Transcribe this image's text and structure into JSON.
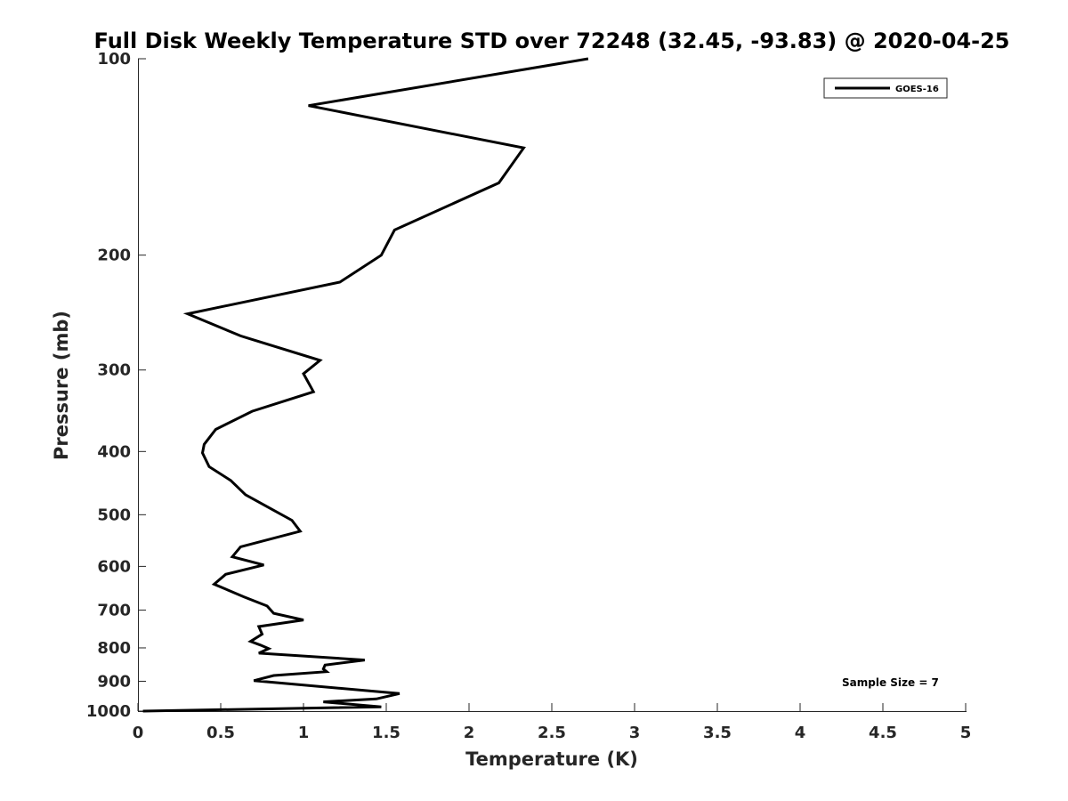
{
  "chart_data": {
    "type": "line",
    "title": "Full Disk Weekly Temperature STD over 72248 (32.45, -93.83) @ 2020-04-25",
    "xlabel": "Temperature (K)",
    "ylabel": "Pressure (mb)",
    "xlim": [
      0,
      5
    ],
    "ylim": [
      100,
      1000
    ],
    "y_scale": "log",
    "y_reversed": true,
    "x_ticks": [
      0,
      0.5,
      1,
      1.5,
      2,
      2.5,
      3,
      3.5,
      4,
      4.5,
      5
    ],
    "x_tick_labels": [
      "0",
      "0.5",
      "1",
      "1.5",
      "2",
      "2.5",
      "3",
      "3.5",
      "4",
      "4.5",
      "5"
    ],
    "y_ticks": [
      100,
      200,
      300,
      400,
      500,
      600,
      700,
      800,
      900,
      1000
    ],
    "y_tick_labels": [
      "100",
      "200",
      "300",
      "400",
      "500",
      "600",
      "700",
      "800",
      "900",
      "1000"
    ],
    "grid": false,
    "legend_position": "top-right",
    "annotation": "Sample Size = 7",
    "series": [
      {
        "name": "GOES-16",
        "color": "#000000",
        "points": [
          [
            2.72,
            100
          ],
          [
            1.03,
            118
          ],
          [
            2.33,
            137
          ],
          [
            2.18,
            155
          ],
          [
            1.55,
            183
          ],
          [
            1.47,
            200
          ],
          [
            1.22,
            220
          ],
          [
            0.3,
            246
          ],
          [
            0.62,
            266
          ],
          [
            1.1,
            290
          ],
          [
            1.0,
            304
          ],
          [
            1.06,
            324
          ],
          [
            0.69,
            347
          ],
          [
            0.47,
            370
          ],
          [
            0.4,
            390
          ],
          [
            0.39,
            402
          ],
          [
            0.43,
            422
          ],
          [
            0.56,
            443
          ],
          [
            0.65,
            466
          ],
          [
            0.8,
            489
          ],
          [
            0.93,
            510
          ],
          [
            0.98,
            530
          ],
          [
            0.62,
            560
          ],
          [
            0.57,
            580
          ],
          [
            0.76,
            597
          ],
          [
            0.53,
            617
          ],
          [
            0.46,
            639
          ],
          [
            0.64,
            668
          ],
          [
            0.78,
            690
          ],
          [
            0.82,
            708
          ],
          [
            1.0,
            725
          ],
          [
            0.73,
            742
          ],
          [
            0.75,
            762
          ],
          [
            0.68,
            782
          ],
          [
            0.74,
            792
          ],
          [
            0.79,
            802
          ],
          [
            0.73,
            815
          ],
          [
            1.37,
            835
          ],
          [
            1.13,
            850
          ],
          [
            1.12,
            862
          ],
          [
            1.14,
            870
          ],
          [
            0.82,
            882
          ],
          [
            0.7,
            898
          ],
          [
            1.58,
            940
          ],
          [
            1.44,
            958
          ],
          [
            1.12,
            968
          ],
          [
            1.47,
            985
          ],
          [
            0.03,
            1000
          ]
        ]
      }
    ]
  }
}
